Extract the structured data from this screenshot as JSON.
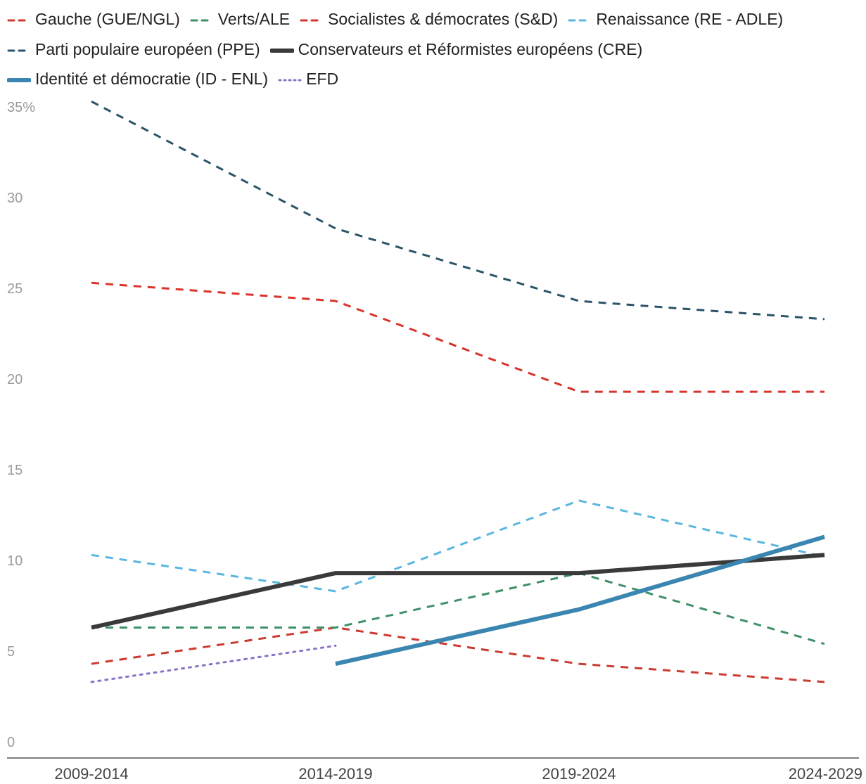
{
  "chart_data": {
    "type": "line",
    "title": "",
    "xlabel": "",
    "ylabel": "",
    "categories": [
      "2009-2014",
      "2014-2019",
      "2019-2024",
      "2024-2029"
    ],
    "ylim": [
      0,
      35
    ],
    "yticks": [
      {
        "value": 35,
        "label": "35%"
      },
      {
        "value": 30,
        "label": "30"
      },
      {
        "value": 25,
        "label": "25"
      },
      {
        "value": 20,
        "label": "20"
      },
      {
        "value": 15,
        "label": "15"
      },
      {
        "value": 10,
        "label": "10"
      },
      {
        "value": 5,
        "label": "5"
      },
      {
        "value": 0,
        "label": "0"
      }
    ],
    "grid": false,
    "legend_position": "top",
    "series": [
      {
        "name": "Gauche (GUE/NGL)",
        "color": "#cc3a30",
        "style": "dashed",
        "values": [
          4.3,
          6.3,
          4.3,
          3.3
        ]
      },
      {
        "name": "Verts/ALE",
        "color": "#3f9068",
        "style": "dashed",
        "values": [
          6.3,
          6.3,
          9.3,
          5.4
        ]
      },
      {
        "name": "Socialistes & démocrates (S&D)",
        "color": "#d9342c",
        "style": "dashed",
        "values": [
          25.3,
          24.3,
          19.3,
          19.3
        ]
      },
      {
        "name": "Renaissance (RE - ADLE)",
        "color": "#5bb6e0",
        "style": "dashed",
        "values": [
          10.3,
          8.3,
          13.3,
          10.2
        ]
      },
      {
        "name": "Parti populaire européen (PPE)",
        "color": "#2b5468",
        "style": "dashed",
        "values": [
          35.3,
          28.3,
          24.3,
          23.3
        ]
      },
      {
        "name": "Conservateurs et Réformistes européens (CRE)",
        "color": "#3a3a3a",
        "style": "solid",
        "width": 6,
        "values": [
          6.3,
          9.3,
          9.3,
          10.3
        ]
      },
      {
        "name": "Identité et démocratie (ID - ENL)",
        "color": "#3a86b0",
        "style": "solid",
        "width": 6,
        "values": [
          null,
          4.3,
          7.3,
          11.3
        ]
      },
      {
        "name": "EFD",
        "color": "#8a72c8",
        "style": "dotted",
        "values": [
          3.3,
          5.3,
          null,
          null
        ]
      }
    ]
  }
}
